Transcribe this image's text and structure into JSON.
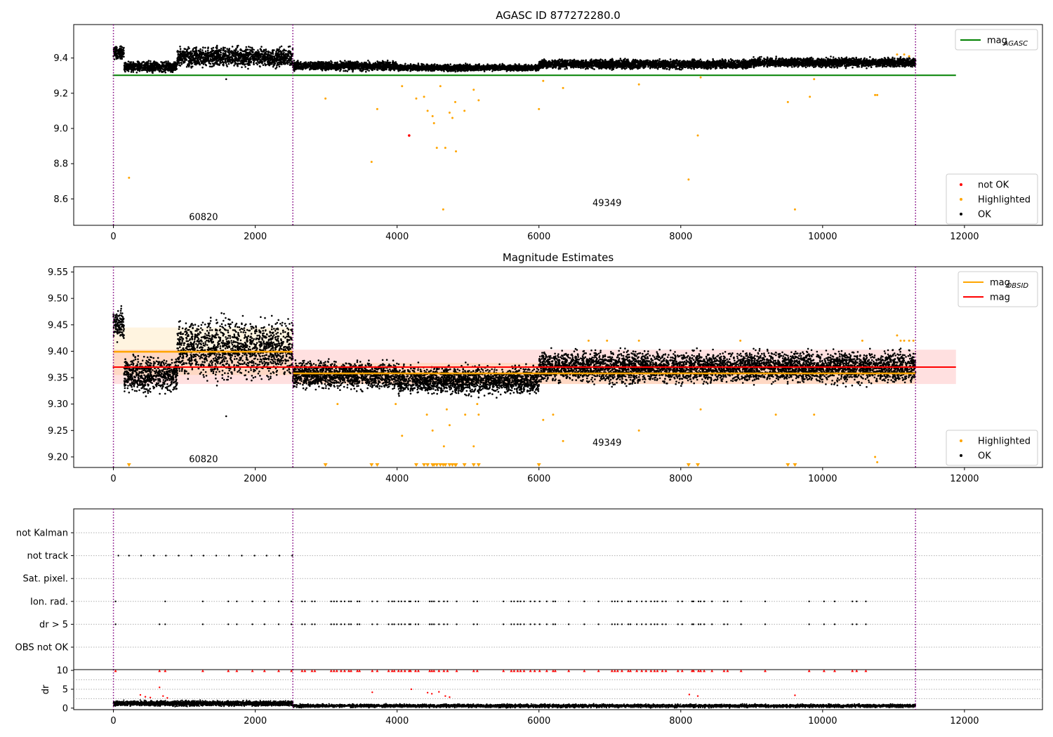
{
  "chart_data": [
    {
      "type": "scatter",
      "title": "AGASC ID 877272280.0",
      "xlim": [
        -560,
        13100
      ],
      "ylim": [
        8.45,
        9.59
      ],
      "xticks": [
        0,
        2000,
        4000,
        6000,
        8000,
        10000,
        12000
      ],
      "yticks": [
        8.6,
        8.8,
        9.0,
        9.2,
        9.4
      ],
      "ytick_labels": [
        "8.6",
        "8.8",
        "9.0",
        "9.2",
        "9.4"
      ],
      "obsid_boundaries": [
        0,
        2530,
        11310
      ],
      "obsid_labels": [
        {
          "x": 1270,
          "y": 8.48,
          "text": "60820"
        },
        {
          "x": 6960,
          "y": 8.56,
          "text": "49349"
        }
      ],
      "hlines": [
        {
          "name": "mag_AGASC",
          "y": 9.302,
          "x": [
            -10,
            11880
          ],
          "color": "#008000"
        }
      ],
      "legend_top": [
        {
          "label": "mag",
          "sub": "AGASC",
          "color": "#008000",
          "kind": "line"
        }
      ],
      "legend_bottom": [
        {
          "label": "not OK",
          "color": "#ff0000",
          "kind": "dot"
        },
        {
          "label": "Highlighted",
          "color": "#ffa500",
          "kind": "dot"
        },
        {
          "label": "OK",
          "color": "#000000",
          "kind": "dot"
        }
      ],
      "ok_bands": [
        {
          "x": [
            0,
            150
          ],
          "y": [
            9.38,
            9.48
          ]
        },
        {
          "x": [
            150,
            900
          ],
          "y": [
            9.31,
            9.39
          ]
        },
        {
          "x": [
            900,
            2530
          ],
          "y": [
            9.33,
            9.48
          ]
        },
        {
          "x": [
            2530,
            4000
          ],
          "y": [
            9.32,
            9.39
          ]
        },
        {
          "x": [
            4000,
            6000
          ],
          "y": [
            9.32,
            9.37
          ]
        },
        {
          "x": [
            6000,
            9000
          ],
          "y": [
            9.33,
            9.4
          ]
        },
        {
          "x": [
            9000,
            11310
          ],
          "y": [
            9.34,
            9.41
          ]
        }
      ],
      "highlighted": [
        [
          220,
          8.72
        ],
        [
          2990,
          9.17
        ],
        [
          3640,
          8.81
        ],
        [
          3720,
          9.11
        ],
        [
          4070,
          9.24
        ],
        [
          4270,
          9.17
        ],
        [
          4380,
          9.18
        ],
        [
          4430,
          9.1
        ],
        [
          4500,
          9.07
        ],
        [
          4520,
          9.03
        ],
        [
          4560,
          8.89
        ],
        [
          4610,
          9.24
        ],
        [
          4650,
          8.54
        ],
        [
          4680,
          8.89
        ],
        [
          4740,
          9.09
        ],
        [
          4780,
          9.06
        ],
        [
          4820,
          9.15
        ],
        [
          4830,
          8.87
        ],
        [
          4950,
          9.1
        ],
        [
          5080,
          9.22
        ],
        [
          5150,
          9.16
        ],
        [
          6000,
          9.11
        ],
        [
          6060,
          9.27
        ],
        [
          6340,
          9.23
        ],
        [
          7410,
          9.25
        ],
        [
          8110,
          8.71
        ],
        [
          8240,
          8.96
        ],
        [
          8280,
          9.29
        ],
        [
          9510,
          9.15
        ],
        [
          9610,
          8.54
        ],
        [
          9820,
          9.18
        ],
        [
          9880,
          9.28
        ],
        [
          10740,
          9.19
        ],
        [
          10770,
          9.19
        ],
        [
          11050,
          9.42
        ],
        [
          11150,
          9.42
        ],
        [
          11220,
          9.41
        ]
      ],
      "not_ok": [
        [
          4170,
          8.96
        ]
      ],
      "ok_extra": [
        [
          1590,
          9.28
        ]
      ]
    },
    {
      "type": "scatter",
      "title": "Magnitude Estimates",
      "xlim": [
        -560,
        13100
      ],
      "ylim": [
        9.18,
        9.56
      ],
      "xticks": [
        0,
        2000,
        4000,
        6000,
        8000,
        10000,
        12000
      ],
      "yticks": [
        9.2,
        9.25,
        9.3,
        9.35,
        9.4,
        9.45,
        9.5,
        9.55
      ],
      "ytick_labels": [
        "9.20",
        "9.25",
        "9.30",
        "9.35",
        "9.40",
        "9.45",
        "9.50",
        "9.55"
      ],
      "obsid_boundaries": [
        0,
        2530,
        11310
      ],
      "obsid_labels": [
        {
          "x": 1270,
          "y": 9.19,
          "text": "60820"
        },
        {
          "x": 6960,
          "y": 9.221,
          "text": "49349"
        }
      ],
      "mag": {
        "value": 9.37,
        "band": [
          9.338,
          9.403
        ],
        "x": [
          -10,
          11880
        ]
      },
      "mag_obsid": [
        {
          "x": [
            0,
            2530
          ],
          "value": 9.399,
          "band": [
            9.355,
            9.445
          ]
        },
        {
          "x": [
            2530,
            11310
          ],
          "value": 9.358,
          "band": [
            9.338,
            9.378
          ]
        }
      ],
      "legend_top": [
        {
          "label": "mag",
          "sub": "OBSID",
          "color": "#ffa500",
          "kind": "line"
        },
        {
          "label": "mag",
          "sub": "",
          "color": "#ff0000",
          "kind": "line"
        }
      ],
      "legend_bottom": [
        {
          "label": "Highlighted",
          "color": "#ffa500",
          "kind": "dot"
        },
        {
          "label": "OK",
          "color": "#000000",
          "kind": "dot"
        }
      ],
      "ok_bands": [
        {
          "x": [
            0,
            150
          ],
          "y": [
            9.41,
            9.49
          ]
        },
        {
          "x": [
            150,
            900
          ],
          "y": [
            9.31,
            9.4
          ]
        },
        {
          "x": [
            900,
            2530
          ],
          "y": [
            9.33,
            9.48
          ]
        },
        {
          "x": [
            2530,
            4000
          ],
          "y": [
            9.32,
            9.39
          ]
        },
        {
          "x": [
            4000,
            6000
          ],
          "y": [
            9.31,
            9.38
          ]
        },
        {
          "x": [
            6000,
            9000
          ],
          "y": [
            9.33,
            9.41
          ]
        },
        {
          "x": [
            9000,
            11310
          ],
          "y": [
            9.33,
            9.41
          ]
        }
      ],
      "highlighted": [
        [
          3160,
          9.3
        ],
        [
          3980,
          9.3
        ],
        [
          4070,
          9.24
        ],
        [
          4420,
          9.28
        ],
        [
          4500,
          9.25
        ],
        [
          4660,
          9.22
        ],
        [
          4700,
          9.29
        ],
        [
          4740,
          9.26
        ],
        [
          4960,
          9.28
        ],
        [
          5080,
          9.22
        ],
        [
          5130,
          9.3
        ],
        [
          5150,
          9.28
        ],
        [
          6060,
          9.27
        ],
        [
          6200,
          9.28
        ],
        [
          6340,
          9.23
        ],
        [
          6700,
          9.42
        ],
        [
          6960,
          9.42
        ],
        [
          7410,
          9.25
        ],
        [
          7410,
          9.42
        ],
        [
          8280,
          9.29
        ],
        [
          8840,
          9.42
        ],
        [
          9340,
          9.28
        ],
        [
          9880,
          9.28
        ],
        [
          10560,
          9.42
        ],
        [
          10740,
          9.2
        ],
        [
          10770,
          9.19
        ],
        [
          11050,
          9.43
        ],
        [
          11100,
          9.42
        ],
        [
          11150,
          9.42
        ],
        [
          11220,
          9.42
        ],
        [
          11280,
          9.42
        ]
      ],
      "below_range": [
        220,
        2990,
        3640,
        3720,
        4270,
        4380,
        4430,
        4500,
        4520,
        4560,
        4610,
        4650,
        4680,
        4740,
        4780,
        4820,
        4830,
        4950,
        5080,
        5150,
        6000,
        8110,
        8240,
        9510,
        9610
      ],
      "ok_extra": [
        [
          1590,
          9.277
        ]
      ]
    },
    {
      "type": "scatter",
      "title": "",
      "xlim": [
        -560,
        13100
      ],
      "flag_rows": [
        "not Kalman",
        "not track",
        "Sat. pixel.",
        "Ion. rad.",
        "dr > 5",
        "OBS not OK"
      ],
      "obsid_boundaries": [
        0,
        2530,
        11310
      ],
      "xticks": [
        0,
        2000,
        4000,
        6000,
        8000,
        10000,
        12000
      ],
      "flags": {
        "not track": [
          70,
          220,
          390,
          570,
          740,
          920,
          1100,
          1270,
          1450,
          1630,
          1810,
          1990,
          2160,
          2340,
          2520
        ],
        "Ion. rad.": [
          30,
          730,
          1260,
          1620,
          1740,
          1960,
          2130,
          2330,
          2510,
          2660,
          2700,
          2800,
          2840,
          3070,
          3110,
          3150,
          3210,
          3260,
          3320,
          3350,
          3440,
          3470,
          3650,
          3720,
          3880,
          3930,
          3960,
          4020,
          4060,
          4110,
          4170,
          4190,
          4260,
          4300,
          4460,
          4490,
          4520,
          4590,
          4660,
          4710,
          4840,
          5080,
          5130,
          5500,
          5610,
          5650,
          5700,
          5740,
          5790,
          5880,
          5940,
          6010,
          6110,
          6200,
          6230,
          6420,
          6640,
          6840,
          7030,
          7070,
          7110,
          7170,
          7260,
          7290,
          7380,
          7450,
          7510,
          7580,
          7630,
          7670,
          7740,
          7790,
          7960,
          8020,
          8160,
          8180,
          8250,
          8280,
          8330,
          8440,
          8610,
          8660,
          8850,
          9190,
          9810,
          10020,
          10170,
          10420,
          10480,
          10610
        ],
        "dr > 5": [
          30,
          650,
          730,
          1260,
          1620,
          1740,
          1960,
          2130,
          2330,
          2510,
          2660,
          2700,
          2800,
          2840,
          3070,
          3110,
          3150,
          3210,
          3260,
          3320,
          3350,
          3440,
          3470,
          3650,
          3720,
          3880,
          3930,
          3960,
          4020,
          4060,
          4110,
          4170,
          4190,
          4260,
          4300,
          4460,
          4490,
          4520,
          4590,
          4660,
          4710,
          4840,
          5080,
          5130,
          5500,
          5610,
          5650,
          5700,
          5740,
          5790,
          5880,
          5940,
          6010,
          6110,
          6200,
          6230,
          6420,
          6640,
          6840,
          7030,
          7070,
          7110,
          7170,
          7260,
          7290,
          7380,
          7450,
          7510,
          7580,
          7630,
          7670,
          7740,
          7790,
          7960,
          8020,
          8160,
          8180,
          8250,
          8280,
          8330,
          8440,
          8610,
          8660,
          8850,
          9190,
          9810,
          10020,
          10170,
          10420,
          10480,
          10610
        ]
      }
    },
    {
      "type": "scatter",
      "title": "",
      "ylabel": "dr",
      "xlim": [
        -560,
        13100
      ],
      "ylim": [
        -0.4,
        10.2
      ],
      "yticks": [
        0,
        5,
        10
      ],
      "ytick_labels": [
        "0",
        "5",
        "10"
      ],
      "grid_y": [
        2.5,
        5,
        7.5
      ],
      "xticks": [
        0,
        2000,
        4000,
        6000,
        8000,
        10000,
        12000
      ],
      "xtick_labels": [
        "0",
        "2000",
        "4000",
        "6000",
        "8000",
        "10000",
        "12000"
      ],
      "obsid_boundaries": [
        0,
        2530,
        11310
      ],
      "ok_bands": [
        {
          "x": [
            0,
            2530
          ],
          "y": [
            0.3,
            2.2
          ]
        },
        {
          "x": [
            2530,
            11310
          ],
          "y": [
            0.0,
            1.2
          ]
        }
      ],
      "red_high_x": [
        30,
        650,
        730,
        1260,
        1620,
        1740,
        1960,
        2130,
        2330,
        2510,
        2660,
        2700,
        2800,
        2840,
        3070,
        3110,
        3150,
        3210,
        3260,
        3320,
        3350,
        3440,
        3470,
        3650,
        3720,
        3880,
        3930,
        3960,
        4020,
        4060,
        4110,
        4170,
        4190,
        4260,
        4300,
        4460,
        4490,
        4520,
        4590,
        4660,
        4710,
        4840,
        5080,
        5130,
        5500,
        5610,
        5650,
        5700,
        5740,
        5790,
        5880,
        5940,
        6010,
        6110,
        6200,
        6230,
        6420,
        6640,
        6840,
        7030,
        7070,
        7110,
        7170,
        7260,
        7290,
        7380,
        7450,
        7510,
        7580,
        7630,
        7670,
        7740,
        7790,
        7960,
        8020,
        8160,
        8180,
        8250,
        8280,
        8330,
        8440,
        8610,
        8660,
        8850,
        9190,
        9810,
        10020,
        10170,
        10420,
        10480,
        10610
      ],
      "red_mid": [
        [
          380,
          3.5
        ],
        [
          450,
          3.0
        ],
        [
          520,
          2.8
        ],
        [
          650,
          5.5
        ],
        [
          700,
          3.2
        ],
        [
          760,
          2.7
        ],
        [
          3650,
          4.2
        ],
        [
          4200,
          5.0
        ],
        [
          4430,
          4.1
        ],
        [
          4490,
          3.8
        ],
        [
          4590,
          4.3
        ],
        [
          4680,
          3.2
        ],
        [
          4740,
          2.9
        ],
        [
          8120,
          3.6
        ],
        [
          8240,
          3.2
        ],
        [
          9610,
          3.4
        ]
      ]
    }
  ]
}
